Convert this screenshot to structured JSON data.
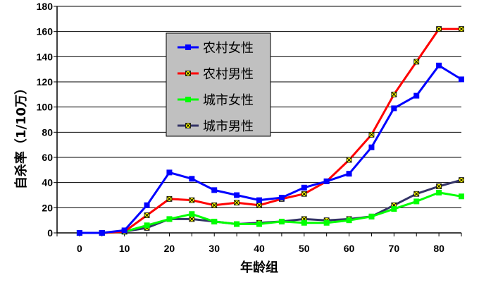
{
  "chart_data": {
    "type": "line",
    "xlabel": "年龄组",
    "ylabel": "自杀率（1/10万）",
    "xlim": [
      -5,
      85
    ],
    "ylim": [
      0,
      180
    ],
    "xticks": [
      0,
      10,
      20,
      30,
      40,
      50,
      60,
      70,
      80
    ],
    "yticks": [
      0,
      20,
      40,
      60,
      80,
      100,
      120,
      140,
      160,
      180
    ],
    "grid": "horizontal",
    "legend_position": "upper-left",
    "x": [
      0,
      5,
      10,
      15,
      20,
      25,
      30,
      35,
      40,
      45,
      50,
      55,
      60,
      65,
      70,
      75,
      80,
      85
    ],
    "series": [
      {
        "name": "农村女性",
        "color": "#0000ff",
        "marker": "square",
        "values": [
          0,
          0,
          2,
          22,
          48,
          43,
          34,
          30,
          26,
          28,
          36,
          41,
          47,
          68,
          99,
          109,
          133,
          122
        ]
      },
      {
        "name": "农村男性",
        "color": "#ff0000",
        "marker": "x-box",
        "values": [
          0,
          0,
          1,
          14,
          27,
          26,
          22,
          24,
          22,
          27,
          31,
          41,
          58,
          78,
          110,
          136,
          162,
          162
        ]
      },
      {
        "name": "城市女性",
        "color": "#00ff00",
        "marker": "square",
        "values": [
          0,
          0,
          1,
          6,
          11,
          15,
          9,
          7,
          7,
          9,
          8,
          8,
          10,
          13,
          19,
          25,
          32,
          29
        ]
      },
      {
        "name": "城市男性",
        "color": "#333366",
        "marker": "x-box",
        "values": [
          0,
          0,
          1,
          4,
          11,
          11,
          9,
          7,
          8,
          9,
          11,
          10,
          11,
          13,
          22,
          31,
          37,
          42
        ]
      }
    ]
  }
}
